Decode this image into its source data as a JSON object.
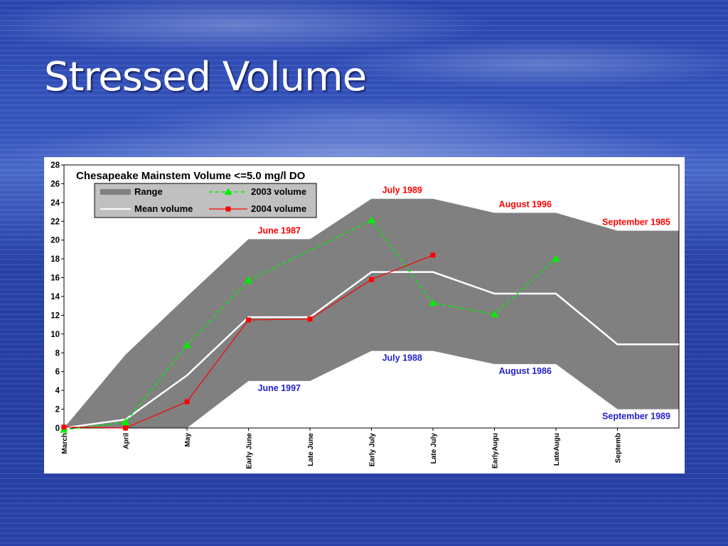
{
  "slide": {
    "title": "Stressed Volume"
  },
  "colors": {
    "range_fill": "#808080",
    "mean_line": "#ffffff",
    "series_2003": "#00ee00",
    "series_2004": "#ff0000",
    "annotation_max": "#ff0000",
    "annotation_min": "#2222cc"
  },
  "chart_data": {
    "type": "line",
    "title": "Chesapeake Mainstem Volume <=5.0 mg/l DO",
    "xlabel": "",
    "ylabel": "",
    "ylim": [
      0,
      28
    ],
    "yticks": [
      0,
      2,
      4,
      6,
      8,
      10,
      12,
      14,
      16,
      18,
      20,
      22,
      24,
      26,
      28
    ],
    "categories": [
      "March",
      "April",
      "May",
      "Early June",
      "Late June",
      "Early July",
      "Late July",
      "EarlyAugu",
      "LateAugu",
      "Septemb"
    ],
    "range": {
      "name": "Range",
      "upper": [
        0,
        7.8,
        14,
        20.1,
        20.1,
        24.4,
        24.4,
        22.9,
        22.9,
        21
      ],
      "lower": [
        0,
        0,
        0,
        5,
        5,
        8.2,
        8.2,
        6.8,
        6.8,
        2
      ],
      "extend_to_right_edge": true
    },
    "series": [
      {
        "name": "Mean volume",
        "values": [
          0,
          0.9,
          5.6,
          11.8,
          11.8,
          16.6,
          16.6,
          14.3,
          14.3,
          8.9
        ],
        "style": "solid-white",
        "extend_to_right_edge": true
      },
      {
        "name": "2003 volume",
        "values": [
          -0.2,
          0.6,
          8.8,
          15.7,
          null,
          22.1,
          13.3,
          12.1,
          18,
          null
        ],
        "style": "dashed-triangle"
      },
      {
        "name": "2004 volume",
        "values": [
          0.1,
          0,
          2.8,
          11.5,
          11.6,
          15.8,
          18.4,
          null,
          null,
          null
        ],
        "style": "solid-square"
      }
    ],
    "legend": {
      "position": "top-left",
      "entries": [
        "Range",
        "2003 volume",
        "Mean volume",
        "2004 volume"
      ]
    },
    "annotations": [
      {
        "text": "June 1987",
        "x": "Early June",
        "y": 20.1,
        "kind": "max"
      },
      {
        "text": "July 1989",
        "x": "Early July",
        "y": 24.4,
        "kind": "max"
      },
      {
        "text": "August 1996",
        "x": "EarlyAugu",
        "y": 22.9,
        "kind": "max"
      },
      {
        "text": "September 1985",
        "x": "Septemb",
        "y": 21,
        "kind": "max"
      },
      {
        "text": "June 1997",
        "x": "Early June",
        "y": 5,
        "kind": "min"
      },
      {
        "text": "July 1988",
        "x": "Early July",
        "y": 8.2,
        "kind": "min"
      },
      {
        "text": "August 1986",
        "x": "EarlyAugu",
        "y": 6.8,
        "kind": "min"
      },
      {
        "text": "September 1989",
        "x": "Septemb",
        "y": 2,
        "kind": "min"
      }
    ]
  }
}
